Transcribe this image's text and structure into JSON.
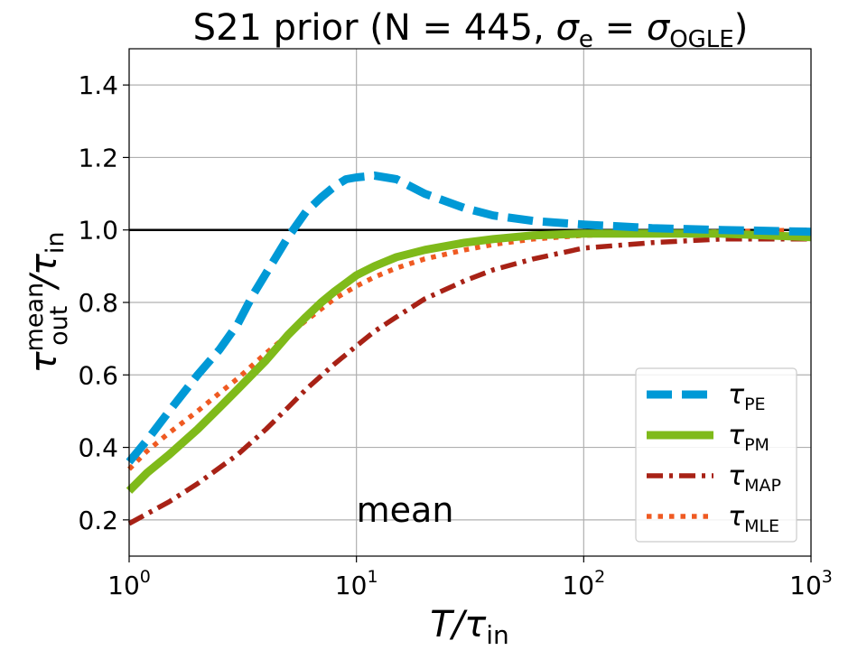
{
  "chart_data": {
    "type": "line",
    "title": {
      "prefix": "S21 prior (N = 445, ",
      "sigma_e_sub": "e",
      "equals": " = ",
      "sigma_ogle_sub": "OGLE",
      "suffix": ")"
    },
    "xlabel": {
      "main": "T/τ",
      "sub": "in"
    },
    "ylabel": {
      "tau": "τ",
      "sup": "mean",
      "sub": "out",
      "slash": "/τ",
      "sub2": "in"
    },
    "x_scale": "log",
    "xlim": [
      1,
      1000
    ],
    "ylim": [
      0.1,
      1.5
    ],
    "x_ticks": [
      {
        "value": 1,
        "base": "10",
        "exp": "0"
      },
      {
        "value": 10,
        "base": "10",
        "exp": "1"
      },
      {
        "value": 100,
        "base": "10",
        "exp": "2"
      },
      {
        "value": 1000,
        "base": "10",
        "exp": "3"
      }
    ],
    "y_ticks": [
      {
        "value": 0.2,
        "label": "0.2"
      },
      {
        "value": 0.4,
        "label": "0.4"
      },
      {
        "value": 0.6,
        "label": "0.6"
      },
      {
        "value": 0.8,
        "label": "0.8"
      },
      {
        "value": 1.0,
        "label": "1.0"
      },
      {
        "value": 1.2,
        "label": "1.2"
      },
      {
        "value": 1.4,
        "label": "1.4"
      }
    ],
    "grid": true,
    "reference_line": {
      "y": 1.0,
      "color": "#000000"
    },
    "annotation": {
      "text": "mean",
      "x": 10,
      "y": 0.2
    },
    "legend": {
      "placement": "lower-right"
    },
    "series": [
      {
        "key": "pe",
        "name": "τ",
        "sub": "PE",
        "color": "#0099d6",
        "style": "dashed",
        "x": [
          1,
          1.2,
          1.5,
          2,
          2.5,
          3,
          3.5,
          4,
          5,
          6,
          7,
          8,
          9,
          10,
          12,
          15,
          20,
          30,
          40,
          60,
          100,
          200,
          400,
          1000
        ],
        "y": [
          0.36,
          0.42,
          0.5,
          0.6,
          0.67,
          0.74,
          0.82,
          0.88,
          0.98,
          1.05,
          1.09,
          1.12,
          1.14,
          1.145,
          1.15,
          1.14,
          1.1,
          1.06,
          1.04,
          1.025,
          1.015,
          1.005,
          1.0,
          0.995
        ]
      },
      {
        "key": "pm",
        "name": "τ",
        "sub": "PM",
        "color": "#7fba1a",
        "style": "solid",
        "x": [
          1,
          1.2,
          1.5,
          2,
          2.5,
          3,
          4,
          5,
          6,
          7,
          8,
          10,
          12,
          15,
          20,
          30,
          40,
          60,
          100,
          200,
          400,
          1000
        ],
        "y": [
          0.28,
          0.33,
          0.38,
          0.45,
          0.51,
          0.56,
          0.64,
          0.71,
          0.76,
          0.8,
          0.83,
          0.875,
          0.9,
          0.925,
          0.945,
          0.965,
          0.975,
          0.985,
          0.99,
          0.99,
          0.99,
          0.98
        ]
      },
      {
        "key": "map",
        "name": "τ",
        "sub": "MAP",
        "color": "#a82216",
        "style": "dashdot",
        "x": [
          1,
          1.5,
          2,
          3,
          4,
          5,
          6,
          8,
          10,
          12,
          15,
          20,
          30,
          40,
          60,
          100,
          200,
          400,
          1000
        ],
        "y": [
          0.19,
          0.25,
          0.3,
          0.38,
          0.45,
          0.51,
          0.56,
          0.63,
          0.68,
          0.72,
          0.76,
          0.81,
          0.86,
          0.89,
          0.92,
          0.95,
          0.965,
          0.975,
          0.975
        ]
      },
      {
        "key": "mle",
        "name": "τ",
        "sub": "MLE",
        "color": "#ef5a22",
        "style": "dotted",
        "x": [
          1,
          1.2,
          1.5,
          2,
          2.5,
          3,
          4,
          5,
          6,
          8,
          10,
          12,
          15,
          20,
          30,
          40,
          60,
          100,
          200,
          400,
          1000
        ],
        "y": [
          0.34,
          0.39,
          0.44,
          0.5,
          0.55,
          0.59,
          0.66,
          0.71,
          0.75,
          0.81,
          0.845,
          0.87,
          0.895,
          0.92,
          0.945,
          0.96,
          0.975,
          0.985,
          0.99,
          0.995,
          1.0
        ]
      }
    ]
  }
}
